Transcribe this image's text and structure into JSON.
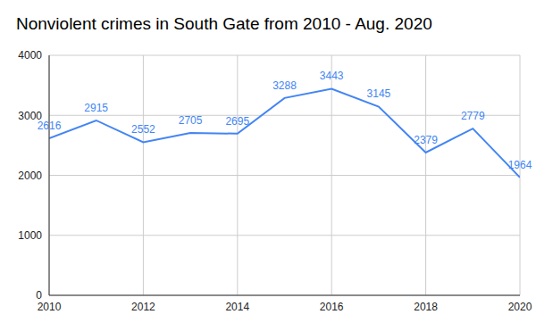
{
  "chart_data": {
    "type": "line",
    "title": "Nonviolent crimes in South Gate from 2010 - Aug. 2020",
    "x": [
      2010,
      2011,
      2012,
      2013,
      2014,
      2015,
      2016,
      2017,
      2018,
      2019,
      2020
    ],
    "values": [
      2616,
      2915,
      2552,
      2705,
      2695,
      3288,
      3443,
      3145,
      2379,
      2779,
      1964
    ],
    "color": "#4285f4",
    "xlim": [
      2010,
      2020
    ],
    "xticks": [
      2010,
      2012,
      2014,
      2016,
      2018,
      2020
    ],
    "ylim": [
      0,
      4000
    ],
    "yticks": [
      0,
      1000,
      2000,
      3000,
      4000
    ],
    "grid": true,
    "data_labels": true
  }
}
